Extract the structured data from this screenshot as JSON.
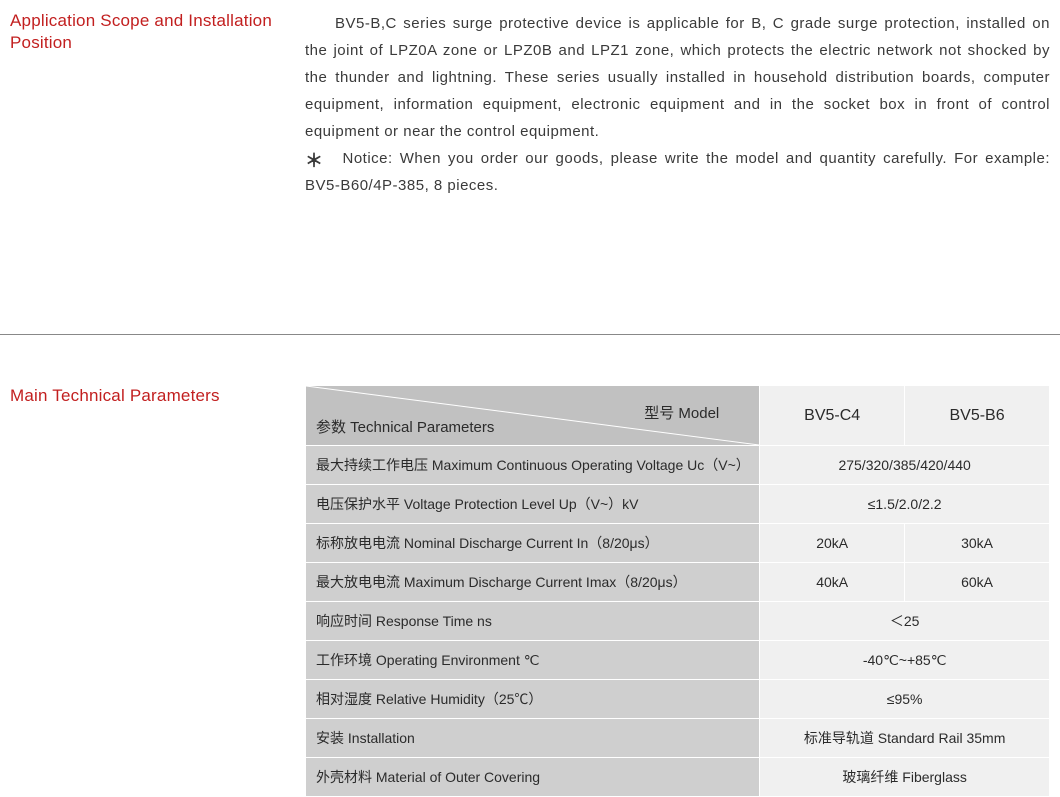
{
  "colors": {
    "title_red": "#c21f1f",
    "header_gray": "#c1c1c1",
    "row_label_gray": "#cfcfcf",
    "value_gray": "#f0f0f0",
    "border": "#888888",
    "text": "#3a3a3a"
  },
  "section1": {
    "title": "Application Scope and Installation Position",
    "para": "BV5-B,C series surge protective device is applicable for B, C grade surge protection, installed on the joint of LPZ0A zone or LPZ0B and LPZ1 zone, which protects the electric network not shocked by the thunder and lightning. These series usually installed in household distribution boards, computer equipment, information equipment, electronic equipment and in the socket box in front of control equipment or near the control equipment.",
    "notice": "Notice: When you order our goods, please write the model and quantity carefully. For example:  BV5-B60/4P-385, 8 pieces."
  },
  "section2": {
    "title": "Main Technical Parameters",
    "table": {
      "header_param": "参数 Technical Parameters",
      "header_model": "型号 Model",
      "model_cols": [
        "BV5-C4",
        "BV5-B6"
      ],
      "rows": [
        {
          "label": "最大持续工作电压 Maximum Continuous Operating Voltage Uc（V~）",
          "values": [
            "275/320/385/420/440"
          ],
          "span": 2
        },
        {
          "label": "电压保护水平 Voltage Protection Level Up（V~）kV",
          "values": [
            "≤1.5/2.0/2.2"
          ],
          "span": 2
        },
        {
          "label": "标称放电电流  Nominal Discharge Current In（8/20μs）",
          "values": [
            "20kA",
            "30kA"
          ],
          "span": 1
        },
        {
          "label": "最大放电电流 Maximum Discharge Current Imax（8/20μs）",
          "values": [
            "40kA",
            "60kA"
          ],
          "span": 1
        },
        {
          "label": "响应时间 Response Time ns",
          "values": [
            "＜25"
          ],
          "span": 2
        },
        {
          "label": "工作环境 Operating Environment ℃",
          "values": [
            "-40℃~+85℃"
          ],
          "span": 2
        },
        {
          "label": "相对湿度 Relative Humidity（25℃）",
          "values": [
            "≤95%"
          ],
          "span": 2
        },
        {
          "label": "安装  Installation",
          "values": [
            "标准导轨道 Standard Rail 35mm"
          ],
          "span": 2
        },
        {
          "label": "外壳材料  Material of Outer Covering",
          "values": [
            "玻璃纤维 Fiberglass"
          ],
          "span": 2
        }
      ]
    }
  }
}
